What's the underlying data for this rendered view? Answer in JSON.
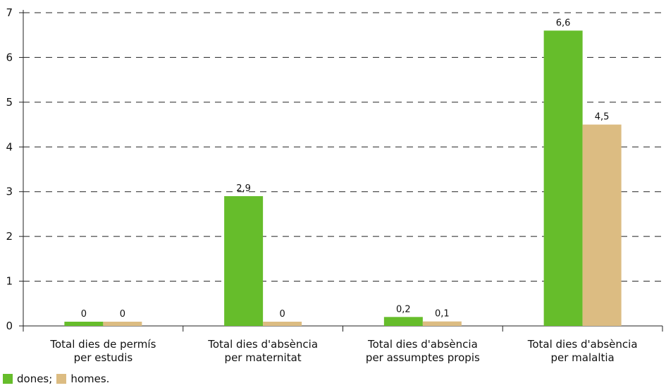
{
  "chart_data": {
    "type": "bar",
    "title": "",
    "xlabel": "",
    "ylabel": "",
    "ylim": [
      0,
      7
    ],
    "yticks": [
      "0",
      "1",
      "2",
      "3",
      "4",
      "5",
      "6",
      "7"
    ],
    "grid": "horizontal dashed",
    "categories": [
      [
        "Total dies de permís",
        "per estudis"
      ],
      [
        "Total dies d'absència",
        "per maternitat"
      ],
      [
        "Total dies d'absència",
        "per assumptes propis"
      ],
      [
        "Total dies d'absència",
        "per malaltia"
      ]
    ],
    "series": [
      {
        "name": "dones",
        "color": "#66bd2b",
        "values": [
          0,
          2.9,
          0.2,
          6.6
        ],
        "labels": [
          "0",
          "2,9",
          "0,2",
          "6,6"
        ]
      },
      {
        "name": "homes",
        "color": "#dcbc82",
        "values": [
          0,
          0,
          0.1,
          4.5
        ],
        "labels": [
          "0",
          "0",
          "0,1",
          "4,5"
        ]
      }
    ],
    "legend": {
      "position": "bottom-left",
      "items": [
        "dones;",
        "homes."
      ]
    }
  }
}
